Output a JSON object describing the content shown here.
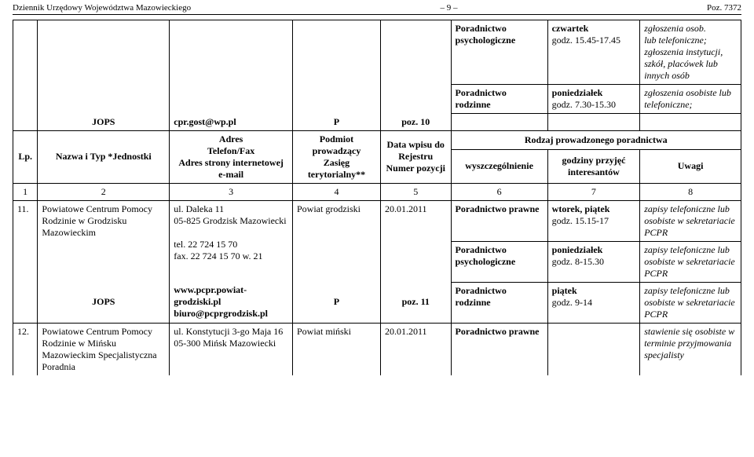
{
  "header": {
    "left": "Dziennik Urzędowy Województwa Mazowieckiego",
    "center": "– 9 –",
    "right": "Poz. 7372"
  },
  "table": {
    "head": {
      "lp": "Lp.",
      "nazwa": "Nazwa i Typ *Jednostki",
      "jops": "JOPS",
      "adres_title": "Adres",
      "adres_l2": "Telefon/Fax",
      "adres_l3": "Adres strony internetowej",
      "adres_l4": "e-mail",
      "cpr": "cpr.gost@wp.pl",
      "podmiot_l1": "Podmiot prowadzący",
      "podmiot_l2": "Zasięg terytorialny**",
      "p": "P",
      "data_l1": "Data wpisu do Rejestru",
      "data_l2": "Numer pozycji",
      "poz10": "poz. 10",
      "rodzaj": "Rodzaj prowadzonego poradnictwa",
      "wysz": "wyszczególnienie",
      "godz": "godziny przyjęć interesantów",
      "uwagi": "Uwagi"
    },
    "toprows": {
      "r1_c6": "Poradnictwo psychologiczne",
      "r1_c7_l1": "czwartek",
      "r1_c7_l2": "godz. 15.45-17.45",
      "r1_c8_l1": "zgłoszenia osob.",
      "r1_c8_l2": "lub telefoniczne; zgłoszenia instytucji, szkół, placówek lub innych osób",
      "r2_c6": "Poradnictwo rodzinne",
      "r2_c7_l1": "poniedziałek",
      "r2_c7_l2": "godz. 7.30-15.30",
      "r2_c8": "zgłoszenia osobiste lub telefoniczne;"
    },
    "numrow": {
      "c1": "1",
      "c2": "2",
      "c3": "3",
      "c4": "4",
      "c5": "5",
      "c6": "6",
      "c7": "7",
      "c8": "8"
    },
    "row11": {
      "lp": "11.",
      "nazwa": "Powiatowe Centrum Pomocy Rodzinie w Grodzisku Mazowieckim",
      "jops": "JOPS",
      "adres_l1": "ul. Daleka 11",
      "adres_l2": "05-825 Grodzisk Mazowiecki",
      "adres_l3": "tel. 22 724 15 70",
      "adres_l4": "fax. 22 724 15 70 w. 21",
      "adres_l5": "www.pcpr.powiat-grodziski.pl",
      "adres_l6": "biuro@pcprgrodzisk.pl",
      "podmiot": "Powiat grodziski",
      "p": "P",
      "data": "20.01.2011",
      "poz": "poz. 11",
      "sub1_c6": "Poradnictwo prawne",
      "sub1_c7_l1": "wtorek, piątek",
      "sub1_c7_l2": "godz. 15.15-17",
      "sub1_c8": "zapisy telefoniczne lub osobiste w sekretariacie PCPR",
      "sub2_c6": "Poradnictwo psychologiczne",
      "sub2_c7_l1": "poniedziałek",
      "sub2_c7_l2": "godz. 8-15.30",
      "sub2_c8": "zapisy telefoniczne lub osobiste w sekretariacie PCPR",
      "sub3_c6": "Poradnictwo rodzinne",
      "sub3_c7_l1": "piątek",
      "sub3_c7_l2": "godz. 9-14",
      "sub3_c8": "zapisy telefoniczne lub osobiste w sekretariacie PCPR"
    },
    "row12": {
      "lp": "12.",
      "nazwa": "Powiatowe Centrum Pomocy Rodzinie w Mińsku Mazowieckim Specjalistyczna Poradnia",
      "adres_l1": "ul. Konstytucji 3-go Maja 16",
      "adres_l2": "05-300 Mińsk Mazowiecki",
      "podmiot": "Powiat miński",
      "data": "20.01.2011",
      "sub1_c6": "Poradnictwo prawne",
      "sub1_c8": "stawienie się osobiste w terminie przyjmowania specjalisty"
    }
  }
}
